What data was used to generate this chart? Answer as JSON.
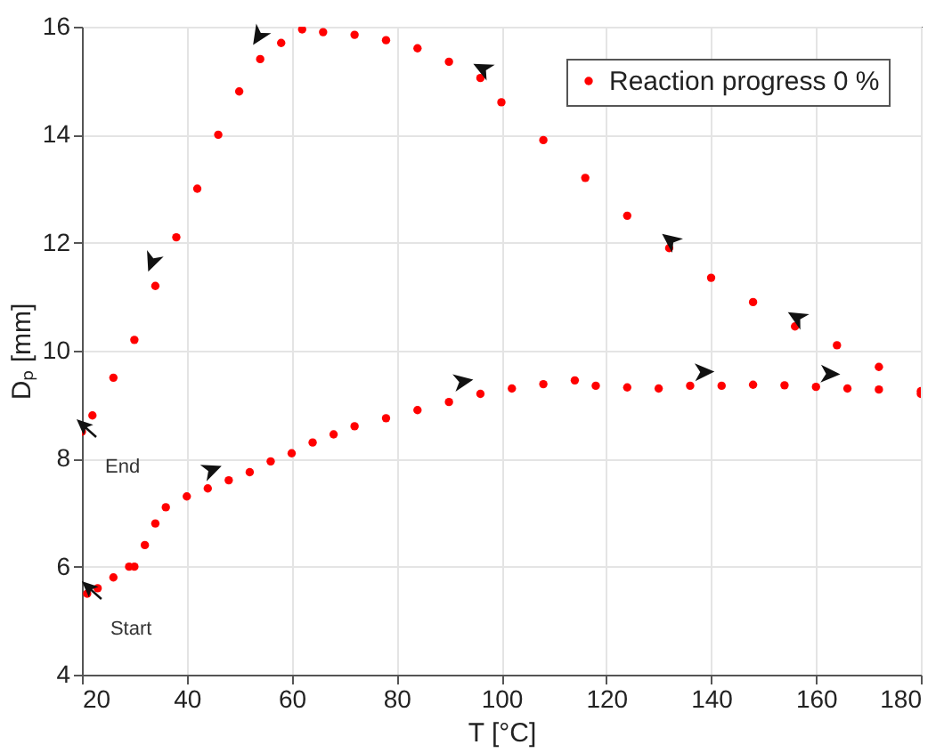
{
  "chart_data": {
    "type": "scatter",
    "xlabel": "T [°C]",
    "ylabel": "Dₚ [mm]",
    "xlim": [
      20,
      180
    ],
    "xticks": [
      20,
      40,
      60,
      80,
      100,
      120,
      140,
      160,
      180
    ],
    "ylim": [
      4,
      16
    ],
    "yticks": [
      4,
      6,
      8,
      10,
      12,
      14,
      16
    ],
    "grid": true,
    "legend": "top right",
    "marker": "circle",
    "annotations": [
      {
        "text": "Start",
        "x": 21,
        "y": 5.5
      },
      {
        "text": "End",
        "x": 20,
        "y": 8.5
      }
    ],
    "series": [
      {
        "name": "Reaction progress 0 %",
        "color": "#ff0000",
        "x": [
          21,
          23,
          26,
          29,
          30,
          32,
          34,
          36,
          40,
          44,
          48,
          52,
          56,
          60,
          64,
          68,
          72,
          78,
          84,
          90,
          96,
          102,
          108,
          114,
          118,
          124,
          130,
          136,
          142,
          148,
          154,
          160,
          166,
          172,
          180,
          180,
          172,
          164,
          156,
          148,
          140,
          132,
          124,
          116,
          108,
          100,
          96,
          90,
          84,
          78,
          72,
          66,
          62,
          58,
          54,
          50,
          46,
          42,
          38,
          34,
          30,
          26,
          22,
          20
        ],
        "values": [
          5.5,
          5.6,
          5.8,
          6.0,
          6.0,
          6.4,
          6.8,
          7.1,
          7.3,
          7.45,
          7.6,
          7.75,
          7.95,
          8.1,
          8.3,
          8.45,
          8.6,
          8.75,
          8.9,
          9.05,
          9.2,
          9.3,
          9.38,
          9.45,
          9.35,
          9.32,
          9.3,
          9.35,
          9.35,
          9.37,
          9.36,
          9.33,
          9.3,
          9.28,
          9.2,
          9.25,
          9.7,
          10.1,
          10.45,
          10.9,
          11.35,
          11.9,
          12.5,
          13.2,
          13.9,
          14.6,
          15.05,
          15.35,
          15.6,
          15.75,
          15.85,
          15.9,
          15.95,
          15.7,
          15.4,
          14.8,
          14.0,
          13.0,
          12.1,
          11.2,
          10.2,
          9.5,
          8.8,
          8.5
        ]
      }
    ]
  }
}
